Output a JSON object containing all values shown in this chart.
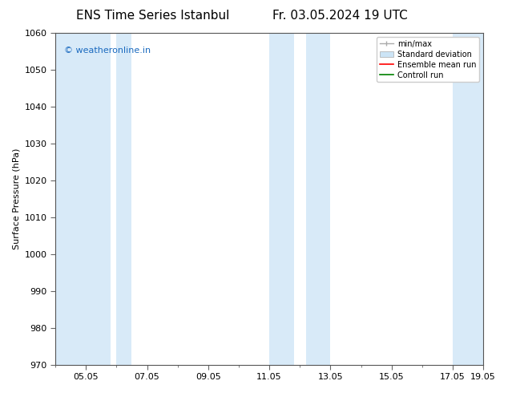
{
  "title_left": "ENS Time Series Istanbul",
  "title_right": "Fr. 03.05.2024 19 UTC",
  "ylabel": "Surface Pressure (hPa)",
  "ylim": [
    970,
    1060
  ],
  "yticks": [
    970,
    980,
    990,
    1000,
    1010,
    1020,
    1030,
    1040,
    1050,
    1060
  ],
  "xlim": [
    0.0,
    14.0
  ],
  "xtick_labels": [
    "05.05",
    "07.05",
    "09.05",
    "11.05",
    "13.05",
    "15.05",
    "17.05",
    "19.05"
  ],
  "xtick_positions": [
    1.0,
    3.0,
    5.0,
    7.0,
    9.0,
    11.0,
    13.0,
    14.0
  ],
  "shaded_bands": [
    {
      "x_start": 0.0,
      "x_end": 2.0,
      "color": "#ddeeff"
    },
    {
      "x_start": 2.0,
      "x_end": 2.5,
      "color": "#ddeeff"
    },
    {
      "x_start": 7.0,
      "x_end": 7.5,
      "color": "#ddeeff"
    },
    {
      "x_start": 7.5,
      "x_end": 9.0,
      "color": "#ddeeff"
    },
    {
      "x_start": 13.0,
      "x_end": 14.0,
      "color": "#ddeeff"
    }
  ],
  "watermark_text": "© weatheronline.in",
  "watermark_color": "#1a6abf",
  "background_color": "#ffffff",
  "plot_bg_color": "#ffffff",
  "legend_labels": [
    "min/max",
    "Standard deviation",
    "Ensemble mean run",
    "Controll run"
  ],
  "legend_minmax_color": "#aaaaaa",
  "legend_std_color": "#cce4f6",
  "legend_ensemble_color": "#ff0000",
  "legend_control_color": "#008000",
  "title_fontsize": 11,
  "tick_fontsize": 8,
  "ylabel_fontsize": 8,
  "legend_fontsize": 7,
  "watermark_fontsize": 8
}
